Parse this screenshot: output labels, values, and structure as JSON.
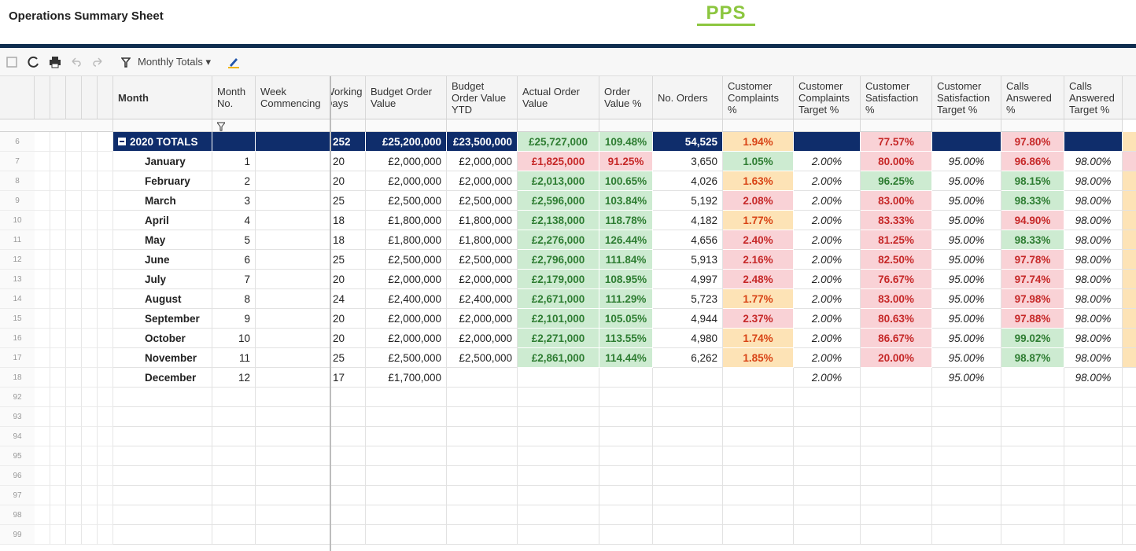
{
  "header": {
    "title": "Operations Summary Sheet",
    "logo": "PPS"
  },
  "toolbar": {
    "view": "Monthly Totals"
  },
  "styles": {
    "navy": {
      "bg": "#0f2d6b",
      "fg": "#ffffff"
    },
    "green": {
      "bg": "#cdebd1",
      "fg": "#2e7d32"
    },
    "red": {
      "bg": "#f9d2d6",
      "fg": "#c62828"
    },
    "amber": {
      "bg": "#fde3b6",
      "fg": "#d84315"
    }
  },
  "table": {
    "columns": [
      "Month",
      "Month No.",
      "Week Commencing",
      "Working Days",
      "Budget Order Value",
      "Budget Order Value YTD",
      "Actual Order Value",
      "Order Value %",
      "No. Orders",
      "Customer Complaints %",
      "Customer Complaints Target %",
      "Customer Satisfaction %",
      "Customer Satisfaction Target %",
      "Calls Answered %",
      "Calls Answered Target %"
    ],
    "rows": [
      {
        "row_number": 6,
        "cells": [
          "2020 TOTALS",
          null,
          null,
          "252",
          "£25,200,000",
          "£23,500,000",
          "£25,727,000",
          "109.48%",
          "54,525",
          "1.94%",
          null,
          "77.57%",
          null,
          "97.80%",
          null
        ],
        "fills": [
          "navy",
          "navy",
          "navy",
          "navy",
          "navy",
          "navy",
          "green",
          "green",
          "navy",
          "amber",
          "navy",
          "red",
          "navy",
          "red",
          "navy"
        ]
      },
      {
        "row_number": 7,
        "cells": [
          "January",
          "1",
          null,
          "20",
          "£2,000,000",
          "£2,000,000",
          "£1,825,000",
          "91.25%",
          "3,650",
          "1.05%",
          "2.00%",
          "80.00%",
          "95.00%",
          "96.86%",
          "98.00%"
        ],
        "fills": [
          null,
          null,
          null,
          null,
          null,
          null,
          "red",
          "red",
          null,
          "green",
          null,
          "red",
          null,
          "red",
          null
        ]
      },
      {
        "row_number": 8,
        "cells": [
          "February",
          "2",
          null,
          "20",
          "£2,000,000",
          "£2,000,000",
          "£2,013,000",
          "100.65%",
          "4,026",
          "1.63%",
          "2.00%",
          "96.25%",
          "95.00%",
          "98.15%",
          "98.00%"
        ],
        "fills": [
          null,
          null,
          null,
          null,
          null,
          null,
          "green",
          "green",
          null,
          "amber",
          null,
          "green",
          null,
          "green",
          null
        ]
      },
      {
        "row_number": 9,
        "cells": [
          "March",
          "3",
          null,
          "25",
          "£2,500,000",
          "£2,500,000",
          "£2,596,000",
          "103.84%",
          "5,192",
          "2.08%",
          "2.00%",
          "83.00%",
          "95.00%",
          "98.33%",
          "98.00%"
        ],
        "fills": [
          null,
          null,
          null,
          null,
          null,
          null,
          "green",
          "green",
          null,
          "red",
          null,
          "red",
          null,
          "green",
          null
        ]
      },
      {
        "row_number": 10,
        "cells": [
          "April",
          "4",
          null,
          "18",
          "£1,800,000",
          "£1,800,000",
          "£2,138,000",
          "118.78%",
          "4,182",
          "1.77%",
          "2.00%",
          "83.33%",
          "95.00%",
          "94.90%",
          "98.00%"
        ],
        "fills": [
          null,
          null,
          null,
          null,
          null,
          null,
          "green",
          "green",
          null,
          "amber",
          null,
          "red",
          null,
          "red",
          null
        ]
      },
      {
        "row_number": 11,
        "cells": [
          "May",
          "5",
          null,
          "18",
          "£1,800,000",
          "£1,800,000",
          "£2,276,000",
          "126.44%",
          "4,656",
          "2.40%",
          "2.00%",
          "81.25%",
          "95.00%",
          "98.33%",
          "98.00%"
        ],
        "fills": [
          null,
          null,
          null,
          null,
          null,
          null,
          "green",
          "green",
          null,
          "red",
          null,
          "red",
          null,
          "green",
          null
        ]
      },
      {
        "row_number": 12,
        "cells": [
          "June",
          "6",
          null,
          "25",
          "£2,500,000",
          "£2,500,000",
          "£2,796,000",
          "111.84%",
          "5,913",
          "2.16%",
          "2.00%",
          "82.50%",
          "95.00%",
          "97.78%",
          "98.00%"
        ],
        "fills": [
          null,
          null,
          null,
          null,
          null,
          null,
          "green",
          "green",
          null,
          "red",
          null,
          "red",
          null,
          "red",
          null
        ]
      },
      {
        "row_number": 13,
        "cells": [
          "July",
          "7",
          null,
          "20",
          "£2,000,000",
          "£2,000,000",
          "£2,179,000",
          "108.95%",
          "4,997",
          "2.48%",
          "2.00%",
          "76.67%",
          "95.00%",
          "97.74%",
          "98.00%"
        ],
        "fills": [
          null,
          null,
          null,
          null,
          null,
          null,
          "green",
          "green",
          null,
          "red",
          null,
          "red",
          null,
          "red",
          null
        ]
      },
      {
        "row_number": 14,
        "cells": [
          "August",
          "8",
          null,
          "24",
          "£2,400,000",
          "£2,400,000",
          "£2,671,000",
          "111.29%",
          "5,723",
          "1.77%",
          "2.00%",
          "83.00%",
          "95.00%",
          "97.98%",
          "98.00%"
        ],
        "fills": [
          null,
          null,
          null,
          null,
          null,
          null,
          "green",
          "green",
          null,
          "amber",
          null,
          "red",
          null,
          "red",
          null
        ]
      },
      {
        "row_number": 15,
        "cells": [
          "September",
          "9",
          null,
          "20",
          "£2,000,000",
          "£2,000,000",
          "£2,101,000",
          "105.05%",
          "4,944",
          "2.37%",
          "2.00%",
          "80.63%",
          "95.00%",
          "97.88%",
          "98.00%"
        ],
        "fills": [
          null,
          null,
          null,
          null,
          null,
          null,
          "green",
          "green",
          null,
          "red",
          null,
          "red",
          null,
          "red",
          null
        ]
      },
      {
        "row_number": 16,
        "cells": [
          "October",
          "10",
          null,
          "20",
          "£2,000,000",
          "£2,000,000",
          "£2,271,000",
          "113.55%",
          "4,980",
          "1.74%",
          "2.00%",
          "86.67%",
          "95.00%",
          "99.02%",
          "98.00%"
        ],
        "fills": [
          null,
          null,
          null,
          null,
          null,
          null,
          "green",
          "green",
          null,
          "amber",
          null,
          "red",
          null,
          "green",
          null
        ]
      },
      {
        "row_number": 17,
        "cells": [
          "November",
          "11",
          null,
          "25",
          "£2,500,000",
          "£2,500,000",
          "£2,861,000",
          "114.44%",
          "6,262",
          "1.85%",
          "2.00%",
          "20.00%",
          "95.00%",
          "98.87%",
          "98.00%"
        ],
        "fills": [
          null,
          null,
          null,
          null,
          null,
          null,
          "green",
          "green",
          null,
          "amber",
          null,
          "red",
          null,
          "green",
          null
        ]
      },
      {
        "row_number": 18,
        "cells": [
          "December",
          "12",
          null,
          "17",
          "£1,700,000",
          null,
          null,
          null,
          null,
          null,
          "2.00%",
          null,
          "95.00%",
          null,
          "98.00%"
        ],
        "fills": [
          null,
          null,
          null,
          null,
          null,
          null,
          null,
          null,
          null,
          null,
          null,
          null,
          null,
          null,
          null
        ]
      }
    ],
    "blank_rows": [
      92,
      93,
      94,
      95,
      96,
      97,
      98,
      99
    ]
  }
}
